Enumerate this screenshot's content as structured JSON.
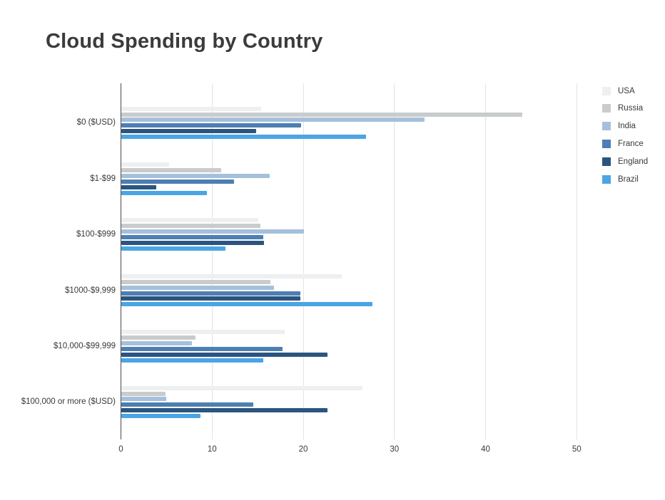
{
  "title": "Cloud Spending by Country",
  "chart_data": {
    "type": "bar",
    "orientation": "horizontal",
    "title": "Cloud Spending by Country",
    "xlabel": "",
    "ylabel": "",
    "xlim": [
      0,
      50
    ],
    "xticks": [
      "0",
      "10",
      "20",
      "30",
      "40",
      "50"
    ],
    "grid": true,
    "legend_position": "right",
    "categories": [
      "$0 ($USD)",
      "$1-$99",
      "$100-$999",
      "$1000-$9,999",
      "$10,000-$99,999",
      "$100,000 or more ($USD)"
    ],
    "series": [
      {
        "name": "USA",
        "color": "#edeff1",
        "values": [
          15.4,
          5.3,
          15.1,
          24.2,
          18.0,
          26.5
        ]
      },
      {
        "name": "Russia",
        "color": "#c9cccd",
        "values": [
          44.0,
          11.0,
          15.3,
          16.4,
          8.2,
          4.9
        ]
      },
      {
        "name": "India",
        "color": "#a6c0dc",
        "values": [
          33.3,
          16.3,
          20.1,
          16.8,
          7.8,
          5.0
        ]
      },
      {
        "name": "France",
        "color": "#4d7fb2",
        "values": [
          19.8,
          12.4,
          15.6,
          19.7,
          17.7,
          14.5
        ]
      },
      {
        "name": "England",
        "color": "#2b5580",
        "values": [
          14.8,
          3.9,
          15.7,
          19.7,
          22.7,
          22.7
        ]
      },
      {
        "name": "Brazil",
        "color": "#4aa5e4",
        "values": [
          26.9,
          9.4,
          11.5,
          27.6,
          15.6,
          8.7
        ]
      }
    ]
  },
  "colors": {
    "background": "#ffffff",
    "title_text": "#3b3b3b",
    "axis_line": "#4a4a4a",
    "gridline": "#e3e3e3",
    "label_text": "#3c3c3c"
  }
}
